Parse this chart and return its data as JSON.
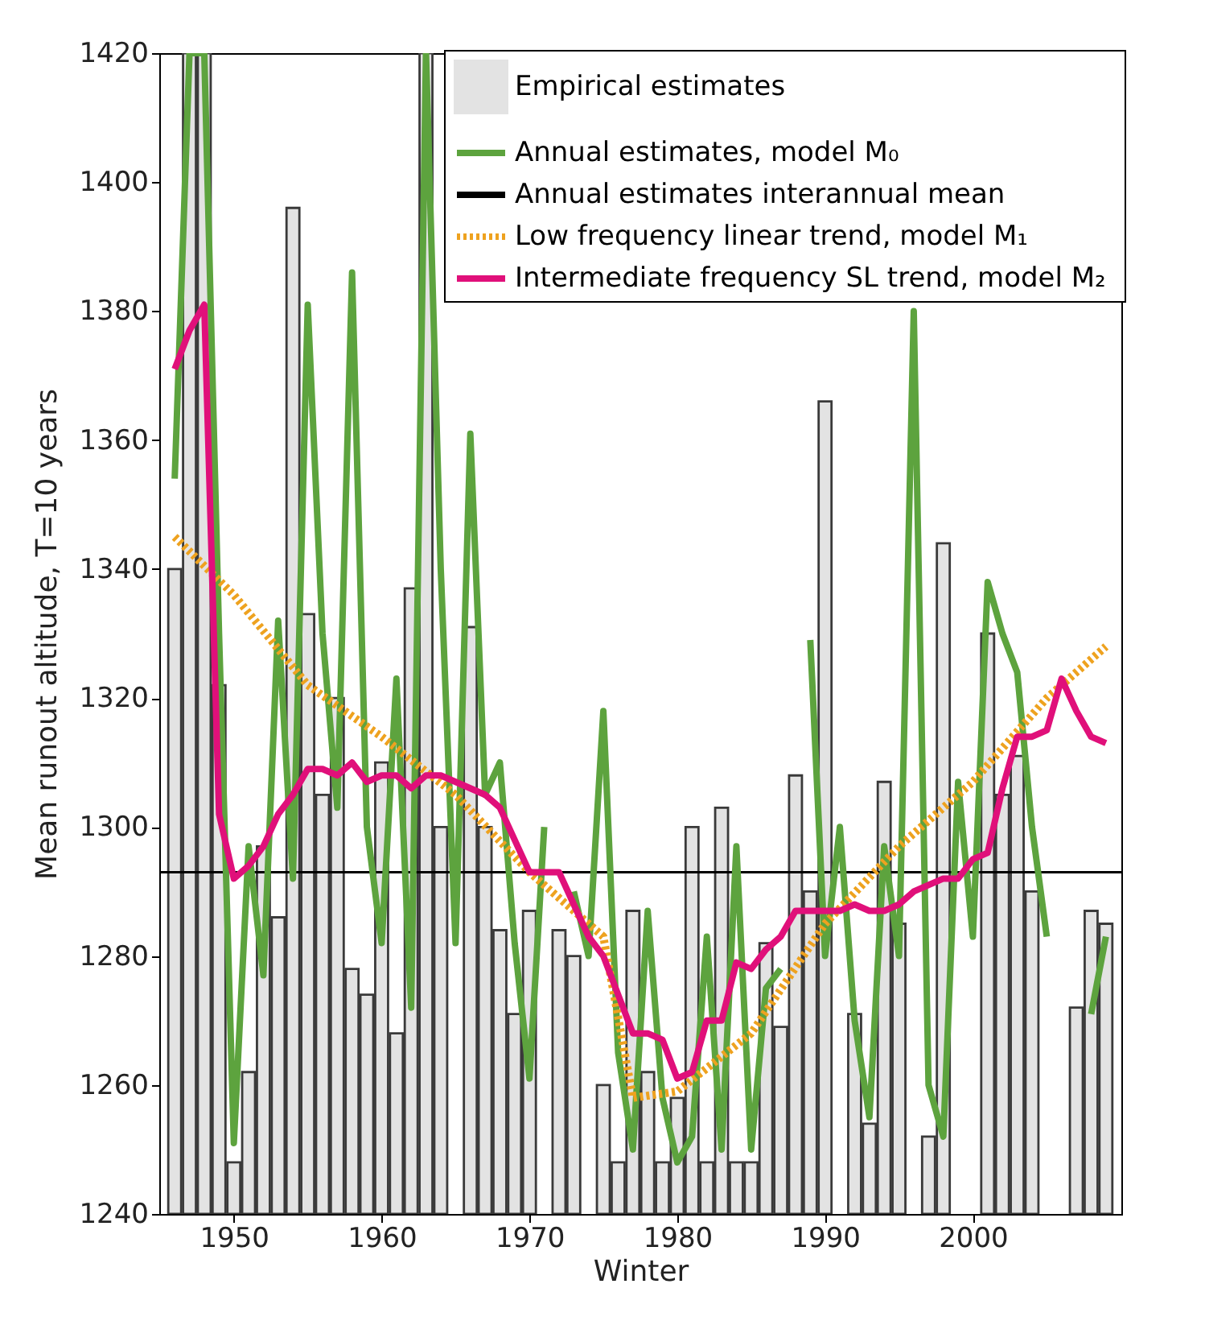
{
  "chart_data": {
    "type": "bar",
    "xlabel": "Winter",
    "ylabel": "Mean runout altitude, T=10 years",
    "xlim": [
      1945.5,
      2009.5
    ],
    "xticks": [
      1950,
      1960,
      1970,
      1980,
      1990,
      2000
    ],
    "ylim": [
      1240,
      1420
    ],
    "yticks": [
      1240,
      1260,
      1280,
      1300,
      1320,
      1340,
      1360,
      1380,
      1400,
      1420
    ],
    "legend": "top right",
    "grid": false,
    "x": [
      1946,
      1947,
      1948,
      1949,
      1950,
      1951,
      1952,
      1953,
      1954,
      1955,
      1956,
      1957,
      1958,
      1959,
      1960,
      1961,
      1962,
      1963,
      1964,
      1965,
      1966,
      1967,
      1968,
      1969,
      1970,
      1971,
      1972,
      1973,
      1974,
      1975,
      1976,
      1977,
      1978,
      1979,
      1980,
      1981,
      1982,
      1983,
      1984,
      1985,
      1986,
      1987,
      1988,
      1989,
      1990,
      1991,
      1992,
      1993,
      1994,
      1995,
      1996,
      1997,
      1998,
      1999,
      2000,
      2001,
      2002,
      2003,
      2004,
      2005,
      2006,
      2007,
      2008,
      2009
    ],
    "series": [
      {
        "name": "Empirical estimates",
        "color": "#e3e3e3",
        "values": [
          1340,
          1420,
          1420,
          1322,
          1248,
          1262,
          1297,
          1286,
          1396,
          1333,
          1305,
          1320,
          1278,
          1274,
          1310,
          1268,
          1337,
          1420,
          1300,
          null,
          1331,
          1300,
          1284,
          1271,
          1287,
          null,
          1284,
          1280,
          null,
          1260,
          1248,
          1287,
          1262,
          1248,
          1258,
          1300,
          1248,
          1303,
          1248,
          1248,
          1282,
          1269,
          1308,
          1290,
          1366,
          null,
          1271,
          1254,
          1307,
          1285,
          null,
          1252,
          1344,
          null,
          null,
          1330,
          1305,
          1311,
          1290,
          null,
          null,
          1272,
          1287,
          1285
        ]
      },
      {
        "name": "Annual estimates, model M₀",
        "type": "line",
        "color": "#5da33e",
        "values": [
          1354,
          1420,
          1420,
          1330,
          1251,
          1297,
          1277,
          1332,
          1292,
          1381,
          1330,
          1303,
          1386,
          1300,
          1282,
          1323,
          1272,
          1420,
          1340,
          1282,
          1361,
          1305,
          1310,
          1282,
          1261,
          1300,
          null,
          1290,
          1280,
          1318,
          1265,
          1250,
          1287,
          1258,
          1248,
          1252,
          1283,
          1250,
          1297,
          1250,
          1275,
          1278,
          null,
          1329,
          1280,
          1300,
          1270,
          1255,
          1297,
          1280,
          1380,
          1260,
          1252,
          1307,
          1283,
          1338,
          1330,
          1324,
          1300,
          1283,
          null,
          null,
          1271,
          1283
        ]
      },
      {
        "name": "Low frequency linear trend, model M₁",
        "type": "line",
        "color": "#eea21f",
        "line_style": "dotted",
        "x": [
          1946,
          1950,
          1955,
          1960,
          1965,
          1970,
          1975,
          1977,
          1980,
          1985,
          1990,
          1995,
          2000,
          2005,
          2009
        ],
        "values": [
          1345,
          1336,
          1322,
          1314,
          1305,
          1293,
          1283,
          1258,
          1259,
          1268,
          1285,
          1297,
          1307,
          1320,
          1328
        ]
      },
      {
        "name": "Intermediate frequency SL trend, model  M₂",
        "type": "line",
        "color": "#e0107a",
        "values": [
          1371,
          1377,
          1381,
          1302,
          1292,
          1294,
          1297,
          1302,
          1305,
          1309,
          1309,
          1308,
          1310,
          1307,
          1308,
          1308,
          1306,
          1308,
          1308,
          1307,
          1306,
          1305,
          1303,
          1298,
          1293,
          1293,
          1293,
          1288,
          1283,
          1280,
          1274,
          1268,
          1268,
          1267,
          1261,
          1262,
          1270,
          1270,
          1279,
          1278,
          1281,
          1283,
          1287,
          1287,
          1287,
          1287,
          1288,
          1287,
          1287,
          1288,
          1290,
          1291,
          1292,
          1292,
          1295,
          1296,
          1306,
          1314,
          1314,
          1315,
          1323,
          1318,
          1314,
          1313
        ]
      }
    ],
    "ref_lines": [
      {
        "axis": "y",
        "value": 1293,
        "label": "Annual estimates interannual mean",
        "color": "#000000"
      }
    ]
  }
}
